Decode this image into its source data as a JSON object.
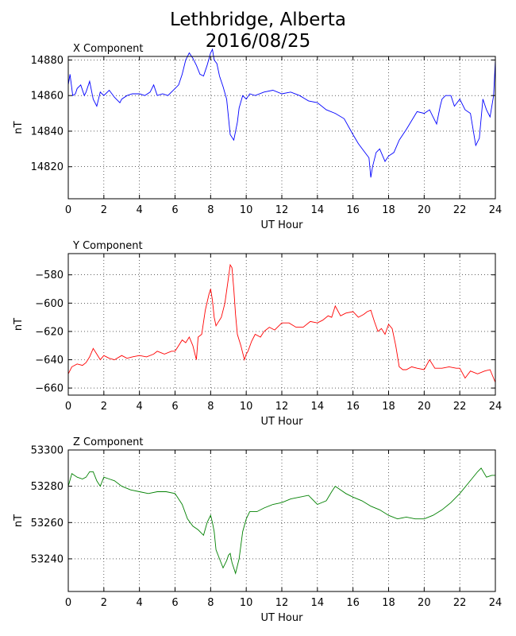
{
  "title_line1": "Lethbridge, Alberta",
  "title_line2": "2016/08/25",
  "chart_data": [
    {
      "type": "line",
      "title": "X Component",
      "xlabel": "UT Hour",
      "ylabel": "nT",
      "xlim": [
        0,
        24
      ],
      "ylim": [
        14802,
        14882
      ],
      "xticks": [
        0,
        2,
        4,
        6,
        8,
        10,
        12,
        14,
        16,
        18,
        20,
        22,
        24
      ],
      "yticks": [
        14820,
        14840,
        14860,
        14880
      ],
      "grid": true,
      "color": "#0000ff",
      "series": [
        {
          "x": [
            0,
            0.1,
            0.25,
            0.4,
            0.5,
            0.7,
            0.9,
            1.0,
            1.2,
            1.4,
            1.6,
            1.8,
            2.0,
            2.3,
            2.6,
            2.9,
            3.0,
            3.3,
            3.6,
            4.0,
            4.3,
            4.6,
            4.8,
            5.0,
            5.3,
            5.6,
            6.0,
            6.2,
            6.4,
            6.6,
            6.8,
            7.0,
            7.2,
            7.4,
            7.6,
            7.8,
            8.0,
            8.1,
            8.2,
            8.35,
            8.5,
            8.7,
            8.9,
            9.1,
            9.3,
            9.5,
            9.6,
            9.8,
            10.0,
            10.2,
            10.5,
            11.0,
            11.5,
            12.0,
            12.5,
            13.0,
            13.5,
            14.0,
            14.5,
            15.0,
            15.5,
            16.0,
            16.3,
            16.6,
            16.9,
            17.0,
            17.1,
            17.3,
            17.5,
            17.8,
            18.0,
            18.3,
            18.6,
            19.0,
            19.3,
            19.6,
            20.0,
            20.3,
            20.5,
            20.7,
            20.9,
            21.0,
            21.2,
            21.5,
            21.7,
            22.0,
            22.3,
            22.6,
            22.9,
            23.1,
            23.3,
            23.5,
            23.7,
            23.9,
            24.0
          ],
          "y": [
            14866,
            14872,
            14860,
            14861,
            14864,
            14866,
            14860,
            14862,
            14868,
            14858,
            14854,
            14862,
            14860,
            14863,
            14859,
            14856,
            14858,
            14860,
            14861,
            14861,
            14860,
            14862,
            14866,
            14860,
            14861,
            14860,
            14864,
            14866,
            14872,
            14880,
            14884,
            14881,
            14877,
            14872,
            14871,
            14877,
            14884,
            14886,
            14880,
            14878,
            14871,
            14865,
            14858,
            14838,
            14835,
            14845,
            14853,
            14860,
            14858,
            14861,
            14860,
            14862,
            14863,
            14861,
            14862,
            14860,
            14857,
            14856,
            14852,
            14850,
            14847,
            14838,
            14833,
            14829,
            14825,
            14814,
            14820,
            14828,
            14830,
            14823,
            14826,
            14828,
            14835,
            14841,
            14846,
            14851,
            14850,
            14852,
            14848,
            14844,
            14854,
            14858,
            14860,
            14860,
            14854,
            14858,
            14852,
            14850,
            14832,
            14836,
            14858,
            14852,
            14848,
            14860,
            14880
          ]
        }
      ]
    },
    {
      "type": "line",
      "title": "Y Component",
      "xlabel": "UT Hour",
      "ylabel": "nT",
      "xlim": [
        0,
        24
      ],
      "ylim": [
        -665,
        -565
      ],
      "xticks": [
        0,
        2,
        4,
        6,
        8,
        10,
        12,
        14,
        16,
        18,
        20,
        22,
        24
      ],
      "yticks": [
        -580,
        -600,
        -620,
        -640,
        -660
      ],
      "grid": true,
      "color": "#ff0000",
      "series": [
        {
          "x": [
            0,
            0.2,
            0.5,
            0.8,
            1.0,
            1.2,
            1.4,
            1.6,
            1.8,
            2.0,
            2.3,
            2.6,
            3.0,
            3.3,
            3.6,
            4.0,
            4.4,
            4.8,
            5.0,
            5.4,
            5.8,
            6.0,
            6.2,
            6.4,
            6.6,
            6.8,
            7.0,
            7.2,
            7.3,
            7.5,
            7.7,
            7.9,
            8.0,
            8.1,
            8.2,
            8.3,
            8.4,
            8.5,
            8.6,
            8.8,
            9.0,
            9.1,
            9.2,
            9.3,
            9.4,
            9.5,
            9.7,
            9.9,
            10.0,
            10.1,
            10.3,
            10.5,
            10.8,
            11.0,
            11.3,
            11.6,
            12.0,
            12.4,
            12.8,
            13.2,
            13.6,
            14.0,
            14.3,
            14.6,
            14.8,
            15.0,
            15.3,
            15.6,
            16.0,
            16.3,
            16.6,
            16.8,
            17.0,
            17.2,
            17.4,
            17.6,
            17.8,
            18.0,
            18.2,
            18.4,
            18.6,
            18.8,
            19.0,
            19.3,
            19.6,
            20.0,
            20.3,
            20.6,
            21.0,
            21.4,
            21.8,
            22.0,
            22.3,
            22.6,
            23.0,
            23.4,
            23.7,
            24.0
          ],
          "y": [
            -650,
            -645,
            -643,
            -644,
            -642,
            -638,
            -632,
            -636,
            -640,
            -637,
            -639,
            -640,
            -637,
            -639,
            -638,
            -637,
            -638,
            -636,
            -634,
            -636,
            -634,
            -634,
            -630,
            -626,
            -628,
            -624,
            -630,
            -640,
            -624,
            -622,
            -605,
            -594,
            -590,
            -598,
            -610,
            -616,
            -614,
            -612,
            -610,
            -600,
            -582,
            -573,
            -575,
            -590,
            -608,
            -622,
            -630,
            -640,
            -636,
            -634,
            -627,
            -622,
            -624,
            -620,
            -617,
            -619,
            -614,
            -614,
            -617,
            -617,
            -613,
            -614,
            -612,
            -609,
            -610,
            -602,
            -609,
            -607,
            -606,
            -610,
            -608,
            -606,
            -605,
            -613,
            -620,
            -618,
            -622,
            -615,
            -618,
            -630,
            -645,
            -647,
            -647,
            -645,
            -646,
            -647,
            -640,
            -646,
            -646,
            -645,
            -646,
            -646,
            -653,
            -648,
            -650,
            -648,
            -647,
            -656
          ]
        }
      ]
    },
    {
      "type": "line",
      "title": "Z Component",
      "xlabel": "UT Hour",
      "ylabel": "nT",
      "xlim": [
        0,
        24
      ],
      "ylim": [
        53222,
        53300
      ],
      "xticks": [
        0,
        2,
        4,
        6,
        8,
        10,
        12,
        14,
        16,
        18,
        20,
        22,
        24
      ],
      "yticks": [
        53300,
        53280,
        53260,
        53240
      ],
      "grid": true,
      "color": "#008000",
      "series": [
        {
          "x": [
            0,
            0.2,
            0.5,
            0.8,
            1.0,
            1.2,
            1.4,
            1.6,
            1.8,
            2.0,
            2.3,
            2.6,
            3.0,
            3.5,
            4.0,
            4.5,
            5.0,
            5.5,
            6.0,
            6.4,
            6.7,
            7.0,
            7.3,
            7.6,
            7.8,
            8.0,
            8.1,
            8.2,
            8.3,
            8.5,
            8.7,
            8.9,
            9.0,
            9.1,
            9.2,
            9.4,
            9.6,
            9.8,
            10.0,
            10.2,
            10.6,
            11.0,
            11.5,
            12.0,
            12.5,
            13.0,
            13.5,
            14.0,
            14.5,
            14.8,
            15.0,
            15.3,
            15.6,
            16.0,
            16.5,
            17.0,
            17.5,
            18.0,
            18.5,
            19.0,
            19.5,
            20.0,
            20.5,
            21.0,
            21.5,
            22.0,
            22.5,
            23.0,
            23.2,
            23.5,
            23.8,
            24.0
          ],
          "y": [
            53280,
            53287,
            53285,
            53284,
            53285,
            53288,
            53288,
            53283,
            53280,
            53285,
            53284,
            53283,
            53280,
            53278,
            53277,
            53276,
            53277,
            53277,
            53276,
            53270,
            53262,
            53258,
            53256,
            53253,
            53260,
            53264,
            53260,
            53255,
            53245,
            53240,
            53235,
            53239,
            53242,
            53243,
            53238,
            53232,
            53240,
            53255,
            53262,
            53266,
            53266,
            53268,
            53270,
            53271,
            53273,
            53274,
            53275,
            53270,
            53272,
            53277,
            53280,
            53278,
            53276,
            53274,
            53272,
            53269,
            53267,
            53264,
            53262,
            53263,
            53262,
            53262,
            53264,
            53267,
            53271,
            53276,
            53282,
            53288,
            53290,
            53285,
            53286,
            53286
          ]
        }
      ]
    }
  ]
}
